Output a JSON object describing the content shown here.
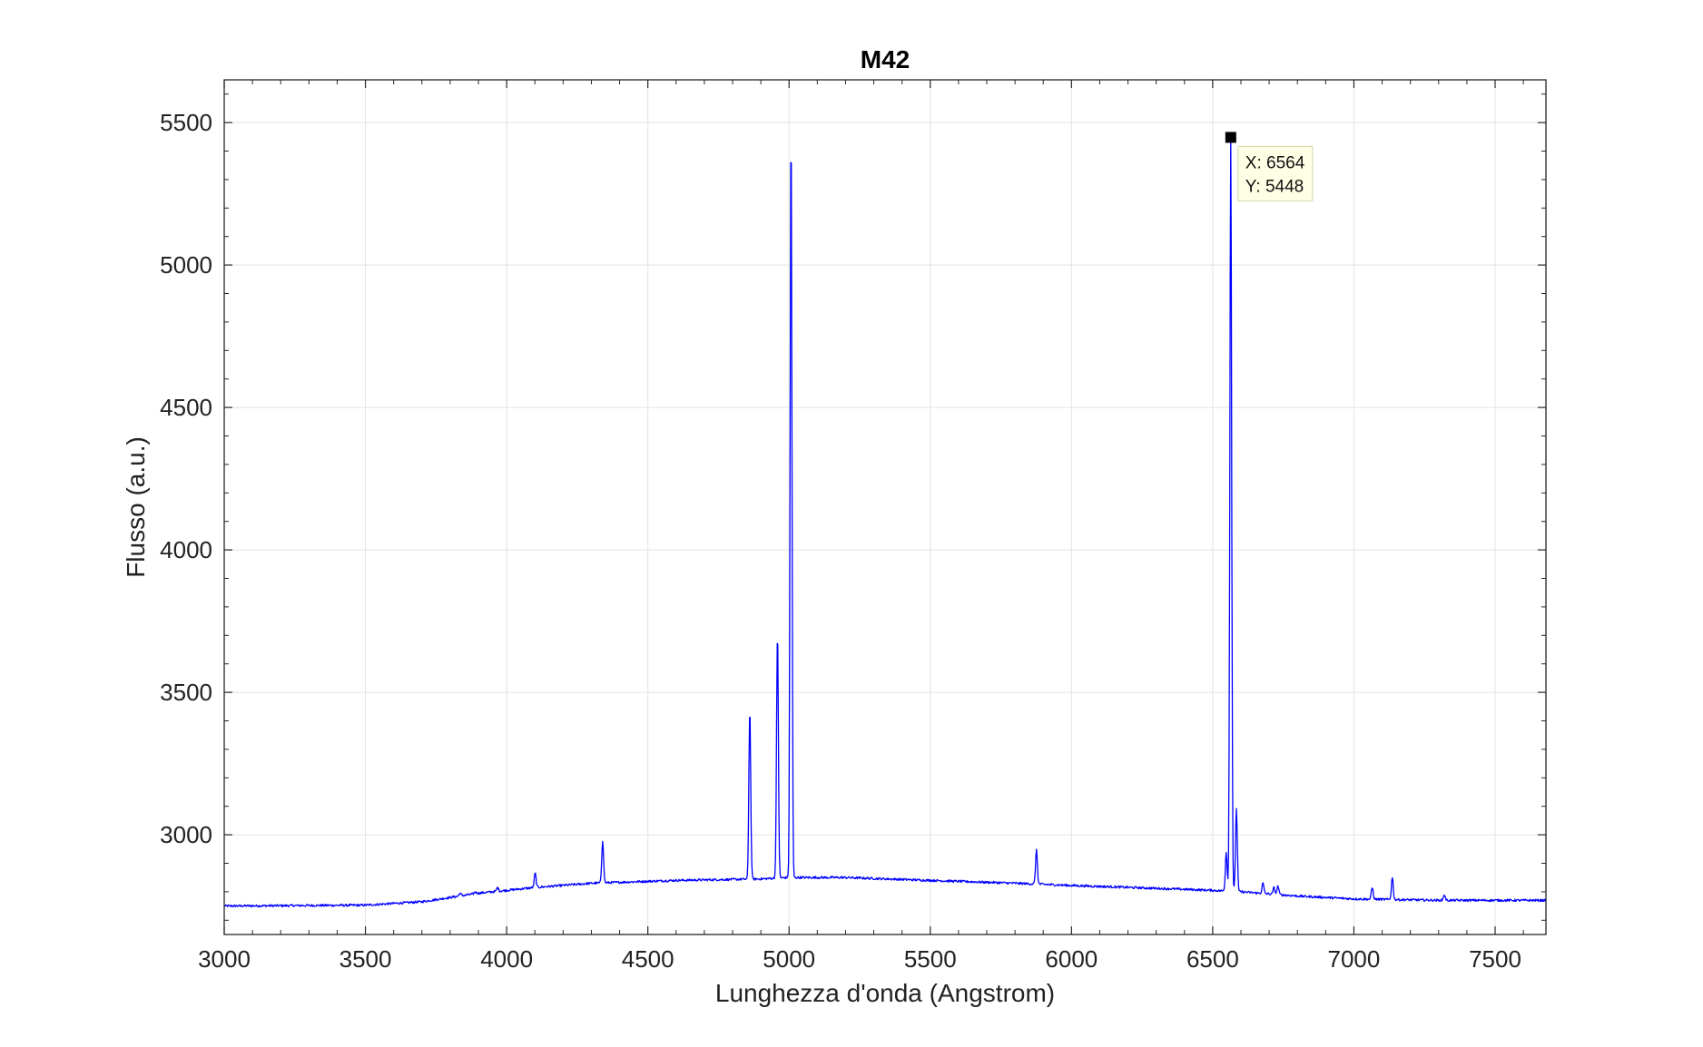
{
  "chart_data": {
    "type": "line",
    "title": "M42",
    "xlabel": "Lunghezza d'onda (Angstrom)",
    "ylabel": "Flusso (a.u.)",
    "xlim": [
      3000,
      7680
    ],
    "ylim": [
      2650,
      5650
    ],
    "xticks": [
      3000,
      3500,
      4000,
      4500,
      5000,
      5500,
      6000,
      6500,
      7000,
      7500
    ],
    "yticks": [
      3000,
      3500,
      4000,
      4500,
      5000,
      5500
    ],
    "grid": true,
    "line_color": "#0000ff",
    "continuum": [
      [
        3000,
        2750
      ],
      [
        3500,
        2753
      ],
      [
        3700,
        2765
      ],
      [
        3900,
        2795
      ],
      [
        4100,
        2815
      ],
      [
        4300,
        2830
      ],
      [
        4600,
        2840
      ],
      [
        4900,
        2845
      ],
      [
        5000,
        2850
      ],
      [
        5200,
        2850
      ],
      [
        5500,
        2840
      ],
      [
        5800,
        2830
      ],
      [
        6000,
        2822
      ],
      [
        6300,
        2812
      ],
      [
        6500,
        2805
      ],
      [
        6600,
        2800
      ],
      [
        6800,
        2785
      ],
      [
        7000,
        2775
      ],
      [
        7300,
        2770
      ],
      [
        7680,
        2770
      ]
    ],
    "emission_lines": [
      {
        "x": 3835,
        "peak": 2795
      },
      {
        "x": 3889,
        "peak": 2800
      },
      {
        "x": 3968,
        "peak": 2815
      },
      {
        "x": 4101,
        "peak": 2865
      },
      {
        "x": 4340,
        "peak": 2980
      },
      {
        "x": 4861,
        "peak": 3440
      },
      {
        "x": 4959,
        "peak": 3710
      },
      {
        "x": 5007,
        "peak": 5485
      },
      {
        "x": 5876,
        "peak": 2945
      },
      {
        "x": 6548,
        "peak": 2940
      },
      {
        "x": 6564,
        "peak": 5448
      },
      {
        "x": 6584,
        "peak": 3090
      },
      {
        "x": 6678,
        "peak": 2830
      },
      {
        "x": 6717,
        "peak": 2815
      },
      {
        "x": 6731,
        "peak": 2820
      },
      {
        "x": 7065,
        "peak": 2815
      },
      {
        "x": 7136,
        "peak": 2850
      },
      {
        "x": 7320,
        "peak": 2790
      }
    ],
    "datatip": {
      "x": 6564,
      "y": 5448,
      "x_text": "X: 6564",
      "y_text": "Y: 5448"
    }
  }
}
